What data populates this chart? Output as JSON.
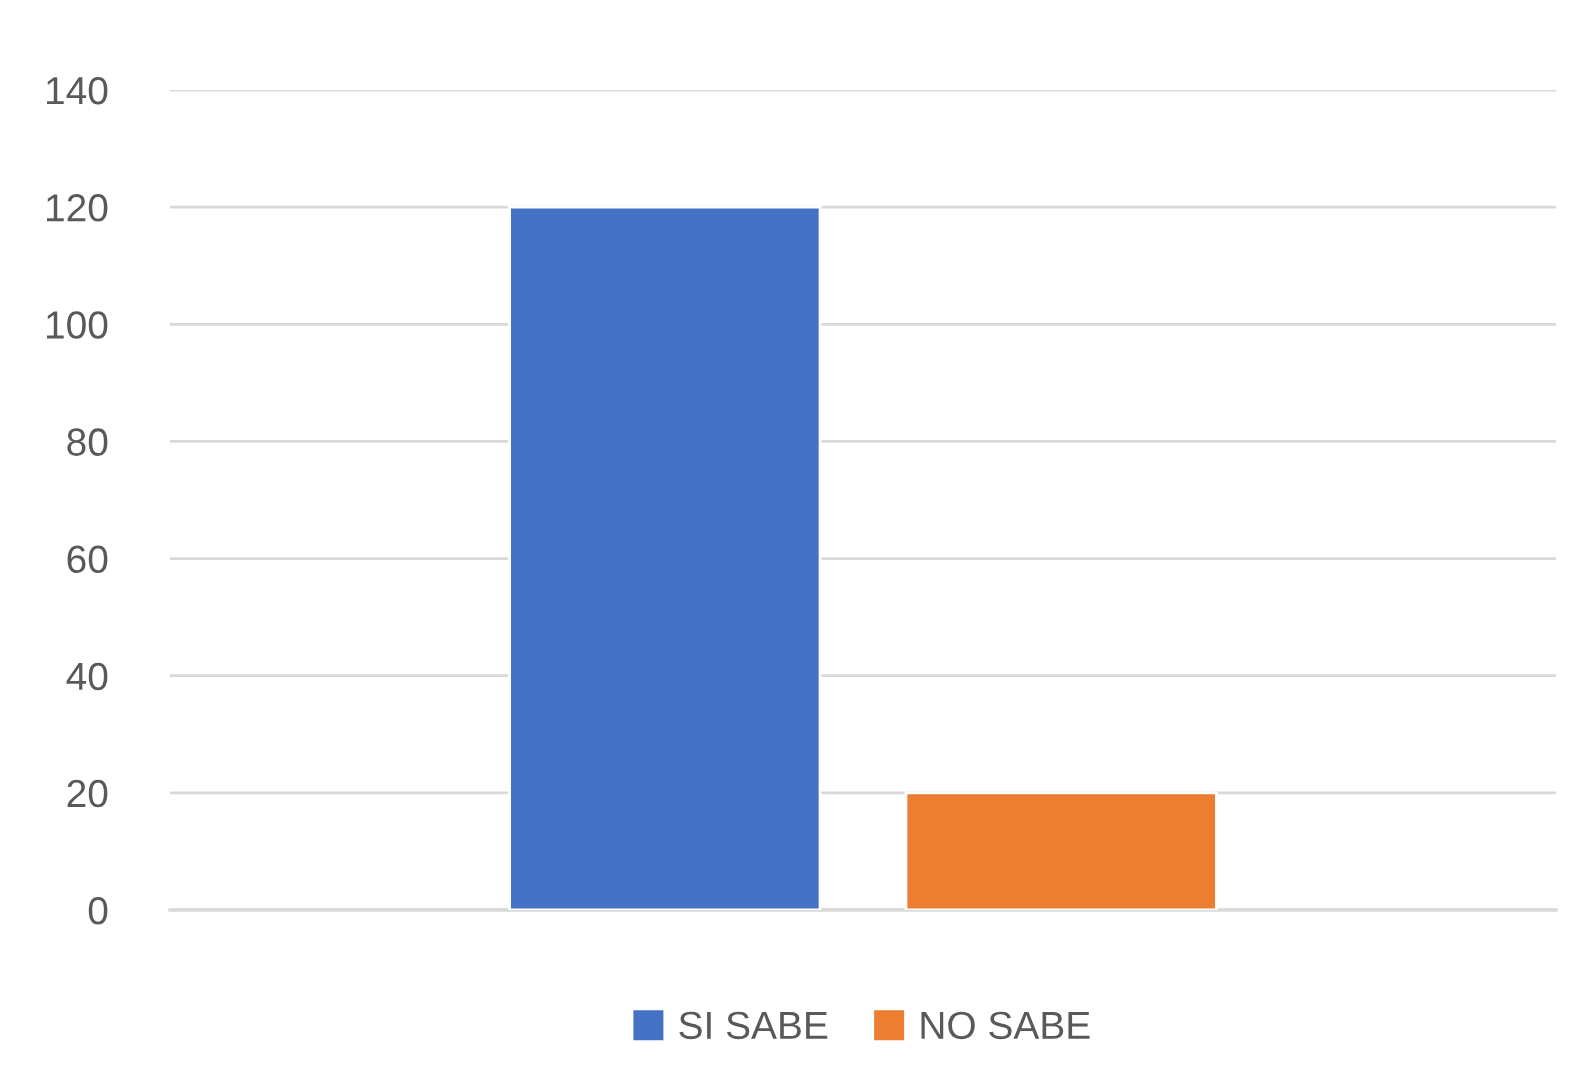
{
  "chart_data": {
    "type": "bar",
    "categories": [
      null
    ],
    "series": [
      {
        "name": "SI SABE",
        "color": "#4472c4",
        "values": [
          120
        ]
      },
      {
        "name": "NO SABE",
        "color": "#ed7d31",
        "values": [
          20
        ]
      }
    ],
    "ylim": [
      0,
      140
    ],
    "yticks": [
      0,
      20,
      40,
      60,
      80,
      100,
      120,
      140
    ],
    "grid": "y",
    "legend": "bottom"
  }
}
